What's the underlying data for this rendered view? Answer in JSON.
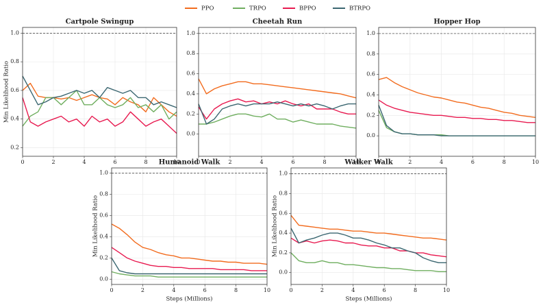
{
  "chart_data": [
    {
      "type": "line",
      "title": "Cartpole Swingup",
      "ylabel": "Min Likelihood Ratio",
      "x": [
        0,
        0.5,
        1,
        1.5,
        2,
        2.5,
        3,
        3.5,
        4,
        4.5,
        5,
        5.5,
        6,
        6.5,
        7,
        7.5,
        8,
        8.5,
        9,
        9.5,
        10
      ],
      "xlim": [
        0,
        10
      ],
      "xticks": [
        0,
        2,
        4,
        6,
        8,
        10
      ],
      "ylim": [
        0.14,
        1.04
      ],
      "yticks": [
        0.2,
        0.4,
        0.6,
        0.8,
        {
          "value": 1,
          "label": "1.0"
        }
      ],
      "hline": 1,
      "grid": true,
      "series": [
        {
          "name": "PPO",
          "color": "#f26b1d",
          "values": [
            0.6,
            0.65,
            0.56,
            0.55,
            0.55,
            0.54,
            0.55,
            0.53,
            0.55,
            0.57,
            0.55,
            0.54,
            0.5,
            0.55,
            0.52,
            0.5,
            0.45,
            0.55,
            0.5,
            0.45,
            0.42
          ]
        },
        {
          "name": "TRPO",
          "color": "#6fae5f",
          "values": [
            0.35,
            0.42,
            0.45,
            0.55,
            0.55,
            0.5,
            0.55,
            0.6,
            0.5,
            0.5,
            0.55,
            0.5,
            0.48,
            0.5,
            0.55,
            0.48,
            0.5,
            0.45,
            0.5,
            0.4,
            0.45
          ]
        },
        {
          "name": "BPPO",
          "color": "#e8194f",
          "values": [
            0.55,
            0.38,
            0.35,
            0.38,
            0.4,
            0.42,
            0.38,
            0.4,
            0.35,
            0.42,
            0.38,
            0.4,
            0.35,
            0.38,
            0.45,
            0.4,
            0.35,
            0.38,
            0.4,
            0.35,
            0.3
          ]
        },
        {
          "name": "BTRPO",
          "color": "#3a6670",
          "values": [
            0.7,
            0.6,
            0.5,
            0.52,
            0.55,
            0.56,
            0.58,
            0.6,
            0.58,
            0.6,
            0.55,
            0.62,
            0.6,
            0.58,
            0.6,
            0.55,
            0.55,
            0.5,
            0.52,
            0.5,
            0.48
          ]
        }
      ]
    },
    {
      "type": "line",
      "title": "Cheetah Run",
      "x": [
        0,
        0.5,
        1,
        1.5,
        2,
        2.5,
        3,
        3.5,
        4,
        4.5,
        5,
        5.5,
        6,
        6.5,
        7,
        7.5,
        8,
        8.5,
        9,
        9.5,
        10
      ],
      "xlim": [
        0,
        10
      ],
      "xticks": [
        0,
        2,
        4,
        6,
        8,
        10
      ],
      "ylim": [
        -0.22,
        1.06
      ],
      "yticks": [
        {
          "value": 0,
          "label": "0.0"
        },
        0.2,
        0.4,
        0.6,
        0.8,
        {
          "value": 1,
          "label": "1.0"
        }
      ],
      "hline": 1,
      "grid": true,
      "series": [
        {
          "name": "PPO",
          "color": "#f26b1d",
          "values": [
            0.55,
            0.4,
            0.45,
            0.48,
            0.5,
            0.52,
            0.52,
            0.5,
            0.5,
            0.49,
            0.48,
            0.47,
            0.46,
            0.45,
            0.44,
            0.43,
            0.42,
            0.41,
            0.4,
            0.38,
            0.36
          ]
        },
        {
          "name": "TRPO",
          "color": "#6fae5f",
          "values": [
            0.1,
            0.1,
            0.12,
            0.15,
            0.18,
            0.2,
            0.2,
            0.18,
            0.17,
            0.2,
            0.15,
            0.15,
            0.12,
            0.14,
            0.12,
            0.1,
            0.1,
            0.1,
            0.08,
            0.07,
            0.06
          ]
        },
        {
          "name": "BPPO",
          "color": "#e8194f",
          "values": [
            0.27,
            0.15,
            0.25,
            0.3,
            0.33,
            0.35,
            0.32,
            0.33,
            0.3,
            0.32,
            0.3,
            0.33,
            0.3,
            0.28,
            0.3,
            0.25,
            0.25,
            0.25,
            0.22,
            0.2,
            0.2
          ]
        },
        {
          "name": "BTRPO",
          "color": "#3a6670",
          "values": [
            0.3,
            0.1,
            0.15,
            0.25,
            0.28,
            0.3,
            0.28,
            0.3,
            0.3,
            0.3,
            0.32,
            0.3,
            0.28,
            0.3,
            0.28,
            0.3,
            0.28,
            0.25,
            0.28,
            0.3,
            0.3
          ]
        }
      ]
    },
    {
      "type": "line",
      "title": "Hopper Hop",
      "x": [
        0,
        0.5,
        1,
        1.5,
        2,
        2.5,
        3,
        3.5,
        4,
        4.5,
        5,
        5.5,
        6,
        6.5,
        7,
        7.5,
        8,
        8.5,
        9,
        9.5,
        10
      ],
      "xlim": [
        0,
        10
      ],
      "xticks": [
        0,
        2,
        4,
        6,
        8,
        10
      ],
      "ylim": [
        -0.2,
        1.06
      ],
      "yticks": [
        {
          "value": 0,
          "label": "0.0"
        },
        0.2,
        0.4,
        0.6,
        0.8,
        {
          "value": 1,
          "label": "1.0"
        }
      ],
      "hline": 1,
      "grid": true,
      "series": [
        {
          "name": "PPO",
          "color": "#f26b1d",
          "values": [
            0.55,
            0.57,
            0.52,
            0.48,
            0.45,
            0.42,
            0.4,
            0.38,
            0.37,
            0.35,
            0.33,
            0.32,
            0.3,
            0.28,
            0.27,
            0.25,
            0.23,
            0.22,
            0.2,
            0.19,
            0.18
          ]
        },
        {
          "name": "TRPO",
          "color": "#6fae5f",
          "values": [
            0.25,
            0.08,
            0.04,
            0.02,
            0.02,
            0.01,
            0.01,
            0.01,
            0.01,
            0,
            0,
            0,
            0,
            0,
            0,
            0,
            0,
            0,
            0,
            0,
            0
          ]
        },
        {
          "name": "BPPO",
          "color": "#e8194f",
          "values": [
            0.35,
            0.3,
            0.27,
            0.25,
            0.23,
            0.22,
            0.21,
            0.2,
            0.2,
            0.19,
            0.18,
            0.18,
            0.17,
            0.17,
            0.16,
            0.16,
            0.15,
            0.15,
            0.14,
            0.13,
            0.13
          ]
        },
        {
          "name": "BTRPO",
          "color": "#3a6670",
          "values": [
            0.3,
            0.1,
            0.04,
            0.02,
            0.02,
            0.01,
            0.01,
            0.01,
            0,
            0,
            0,
            0,
            0,
            0,
            0,
            0,
            0,
            0,
            0,
            0,
            0
          ]
        }
      ]
    },
    {
      "type": "line",
      "title": "Humanoid Walk",
      "ylabel": "Min Likelihood Ratio",
      "xlabel": "Steps (Millions)",
      "x": [
        0,
        0.5,
        1,
        1.5,
        2,
        2.5,
        3,
        3.5,
        4,
        4.5,
        5,
        5.5,
        6,
        6.5,
        7,
        7.5,
        8,
        8.5,
        9,
        9.5,
        10
      ],
      "xlim": [
        0,
        10
      ],
      "xticks": [
        0,
        2,
        4,
        6,
        8,
        10
      ],
      "ylim": [
        -0.05,
        1.05
      ],
      "yticks": [
        {
          "value": 0,
          "label": "0.0"
        },
        0.2,
        0.4,
        0.6,
        0.8,
        {
          "value": 1,
          "label": "1.0"
        }
      ],
      "hline": 1,
      "grid": true,
      "series": [
        {
          "name": "PPO",
          "color": "#f26b1d",
          "values": [
            0.52,
            0.48,
            0.42,
            0.35,
            0.3,
            0.28,
            0.25,
            0.23,
            0.22,
            0.2,
            0.2,
            0.19,
            0.18,
            0.17,
            0.17,
            0.16,
            0.16,
            0.15,
            0.15,
            0.15,
            0.14
          ]
        },
        {
          "name": "TRPO",
          "color": "#6fae5f",
          "values": [
            0.07,
            0.05,
            0.04,
            0.03,
            0.03,
            0.03,
            0.02,
            0.02,
            0.02,
            0.02,
            0.02,
            0.02,
            0.02,
            0.02,
            0.02,
            0.02,
            0.02,
            0.02,
            0.02,
            0.02,
            0.02
          ]
        },
        {
          "name": "BPPO",
          "color": "#e8194f",
          "values": [
            0.3,
            0.25,
            0.2,
            0.17,
            0.15,
            0.13,
            0.12,
            0.12,
            0.11,
            0.11,
            0.1,
            0.1,
            0.1,
            0.1,
            0.09,
            0.09,
            0.09,
            0.09,
            0.08,
            0.08,
            0.08
          ]
        },
        {
          "name": "BTRPO",
          "color": "#3a6670",
          "values": [
            0.2,
            0.08,
            0.06,
            0.05,
            0.05,
            0.05,
            0.05,
            0.05,
            0.05,
            0.05,
            0.05,
            0.05,
            0.05,
            0.05,
            0.05,
            0.05,
            0.05,
            0.05,
            0.05,
            0.05,
            0.05
          ]
        }
      ]
    },
    {
      "type": "line",
      "title": "Walker Walk",
      "ylabel": "Min Likelihood Ratio",
      "xlabel": "Steps (Millions)",
      "x": [
        0,
        0.5,
        1,
        1.5,
        2,
        2.5,
        3,
        3.5,
        4,
        4.5,
        5,
        5.5,
        6,
        6.5,
        7,
        7.5,
        8,
        8.5,
        9,
        9.5,
        10
      ],
      "xlim": [
        0,
        10
      ],
      "xticks": [
        0,
        2,
        4,
        6,
        8,
        10
      ],
      "ylim": [
        -0.12,
        1.06
      ],
      "yticks": [
        {
          "value": 0,
          "label": "0.0"
        },
        0.2,
        0.4,
        0.6,
        0.8,
        {
          "value": 1,
          "label": "1.0"
        }
      ],
      "hline": 1,
      "grid": true,
      "series": [
        {
          "name": "PPO",
          "color": "#f26b1d",
          "values": [
            0.58,
            0.48,
            0.47,
            0.46,
            0.45,
            0.44,
            0.44,
            0.43,
            0.42,
            0.42,
            0.41,
            0.4,
            0.4,
            0.39,
            0.38,
            0.37,
            0.36,
            0.35,
            0.35,
            0.34,
            0.33
          ]
        },
        {
          "name": "TRPO",
          "color": "#6fae5f",
          "values": [
            0.2,
            0.12,
            0.1,
            0.1,
            0.12,
            0.1,
            0.1,
            0.08,
            0.08,
            0.07,
            0.06,
            0.05,
            0.05,
            0.04,
            0.04,
            0.03,
            0.02,
            0.02,
            0.02,
            0.01,
            0.01
          ]
        },
        {
          "name": "BPPO",
          "color": "#e8194f",
          "values": [
            0.35,
            0.3,
            0.32,
            0.3,
            0.32,
            0.33,
            0.32,
            0.3,
            0.3,
            0.28,
            0.27,
            0.27,
            0.25,
            0.25,
            0.22,
            0.22,
            0.2,
            0.2,
            0.18,
            0.17,
            0.16
          ]
        },
        {
          "name": "BTRPO",
          "color": "#3a6670",
          "values": [
            0.45,
            0.3,
            0.33,
            0.35,
            0.38,
            0.4,
            0.4,
            0.38,
            0.35,
            0.35,
            0.33,
            0.3,
            0.28,
            0.25,
            0.25,
            0.22,
            0.2,
            0.15,
            0.12,
            0.1,
            0.1
          ]
        }
      ]
    }
  ]
}
